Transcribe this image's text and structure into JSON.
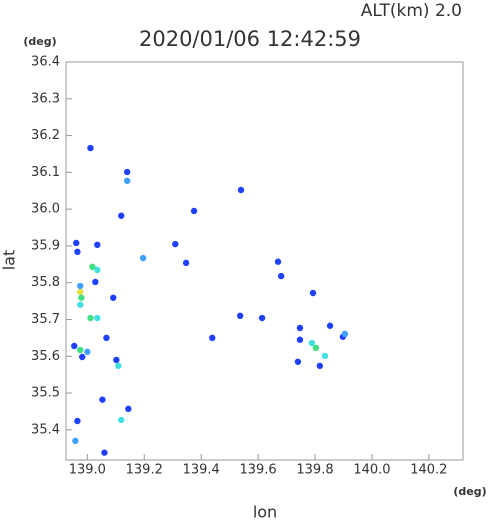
{
  "chart_data": {
    "type": "scatter",
    "title": "2020/01/06 12:42:59",
    "subtitle": "ALT(km)  2.0",
    "x_label": "lon",
    "y_label": "lat",
    "x_unit": "(deg)",
    "y_unit": "(deg)",
    "xlim": [
      138.925,
      140.32
    ],
    "ylim": [
      35.318,
      36.4
    ],
    "xticks": [
      {
        "value": 139,
        "label": "139.0"
      },
      139.2,
      139.4,
      139.6,
      139.8,
      {
        "value": 140,
        "label": "140.0"
      },
      140.2
    ],
    "yticks": [
      35.4,
      35.5,
      35.6,
      35.7,
      35.8,
      35.9,
      {
        "value": 36,
        "label": "36.0"
      },
      36.1,
      36.2,
      36.3,
      36.4
    ],
    "series": [
      {
        "x": [
          139.011,
          139.14,
          139.14,
          139.119,
          138.961,
          139.035,
          138.965,
          139.018,
          139.035,
          138.975,
          138.975,
          138.979,
          138.975,
          139.028,
          139.091,
          139.011,
          139.035,
          139.067,
          138.954,
          138.975,
          139.0,
          139.102,
          139.109,
          138.982,
          139.053,
          139.119,
          138.965,
          138.958,
          139.06,
          139.144,
          139.309,
          139.347,
          139.196,
          139.439,
          139.537,
          139.614,
          139.67,
          139.681,
          139.793,
          139.747,
          139.789,
          139.803,
          139.835,
          139.74,
          139.817,
          139.898,
          139.905,
          139.853,
          139.54,
          139.375,
          139.747
        ],
        "values": [
          36.166,
          36.101,
          36.077,
          35.982,
          35.908,
          35.903,
          35.884,
          35.843,
          35.835,
          35.791,
          35.775,
          35.759,
          35.74,
          35.802,
          35.759,
          35.704,
          35.704,
          35.65,
          35.628,
          35.617,
          35.612,
          35.59,
          35.574,
          35.598,
          35.482,
          35.427,
          35.424,
          35.37,
          35.338,
          35.457,
          35.905,
          35.854,
          35.867,
          35.65,
          35.71,
          35.704,
          35.857,
          35.818,
          35.772,
          35.645,
          35.636,
          35.623,
          35.601,
          35.585,
          35.574,
          35.653,
          35.661,
          35.683,
          36.052,
          35.995,
          35.677
        ],
        "colors": [
          "#2040ff",
          "#2040ff",
          "#40a0ff",
          "#2040ff",
          "#2040ff",
          "#2040ff",
          "#2040ff",
          "#40e080",
          "#40e0e0",
          "#40a0ff",
          "#e0e040",
          "#40e080",
          "#40e0e0",
          "#2040ff",
          "#2040ff",
          "#40e080",
          "#40e0e0",
          "#2040ff",
          "#2040ff",
          "#40e080",
          "#40a0ff",
          "#2040ff",
          "#40e0e0",
          "#2040ff",
          "#2040ff",
          "#40e0e0",
          "#2040ff",
          "#40a0ff",
          "#2040ff",
          "#2040ff",
          "#2040ff",
          "#2040ff",
          "#40a0ff",
          "#2040ff",
          "#2040ff",
          "#2040ff",
          "#2040ff",
          "#2040ff",
          "#2040ff",
          "#2040ff",
          "#40e0e0",
          "#40e080",
          "#40e0e0",
          "#2040ff",
          "#2040ff",
          "#2040ff",
          "#40a0ff",
          "#2040ff",
          "#2040ff",
          "#2040ff",
          "#2040ff"
        ]
      }
    ]
  }
}
